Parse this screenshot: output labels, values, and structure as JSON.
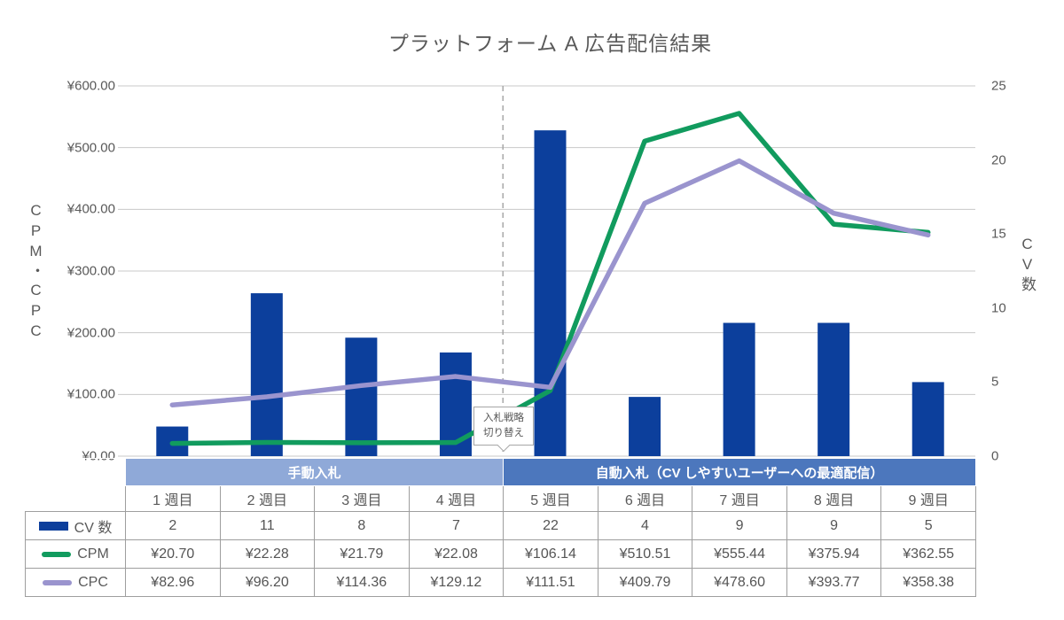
{
  "title": "プラットフォーム A 広告配信結果",
  "colors": {
    "bar": "#0C3F9C",
    "cpm_line": "#119B5E",
    "cpc_line": "#9A94CE",
    "band_manual_bg": "#8FA9D8",
    "band_auto_bg": "#4C77BD",
    "grid": "#c8c8c8",
    "dashed_line": "#a8a8a8",
    "axis_text": "#595959"
  },
  "left_axis": {
    "title": "CPM・CPC",
    "ticks": [
      "¥600.00",
      "¥500.00",
      "¥400.00",
      "¥300.00",
      "¥200.00",
      "¥100.00",
      "¥0.00"
    ]
  },
  "right_axis": {
    "title": "CV数",
    "ticks": [
      "25",
      "20",
      "15",
      "10",
      "5",
      "0"
    ]
  },
  "annotation": {
    "line1": "入札戦略",
    "line2": "切り替え"
  },
  "chart_data": {
    "type": "combo",
    "title": "プラットフォーム A 広告配信結果",
    "categories": [
      "1 週目",
      "2 週目",
      "3 週目",
      "4 週目",
      "5 週目",
      "6 週目",
      "7 週目",
      "8 週目",
      "9 週目"
    ],
    "series": [
      {
        "name": "CV 数",
        "type": "bar",
        "axis": "right",
        "values": [
          2,
          11,
          8,
          7,
          22,
          4,
          9,
          9,
          5
        ]
      },
      {
        "name": "CPM",
        "type": "line",
        "axis": "left",
        "values": [
          20.7,
          22.28,
          21.79,
          22.08,
          106.14,
          510.51,
          555.44,
          375.94,
          362.55
        ]
      },
      {
        "name": "CPC",
        "type": "line",
        "axis": "left",
        "values": [
          82.96,
          96.2,
          114.36,
          129.12,
          111.51,
          409.79,
          478.6,
          393.77,
          358.38
        ]
      }
    ],
    "left_ylim": [
      0,
      600
    ],
    "right_ylim": [
      0,
      25
    ],
    "grid": "horizontal",
    "strategy_switch_after_category_index": 3
  },
  "table": {
    "bands": [
      {
        "label": "手動入札",
        "span": 4
      },
      {
        "label": "自動入札（CV しやすいユーザーへの最適配信）",
        "span": 5
      }
    ],
    "weeks": [
      "1 週目",
      "2 週目",
      "3 週目",
      "4 週目",
      "5 週目",
      "6 週目",
      "7 週目",
      "8 週目",
      "9 週目"
    ],
    "rows": [
      {
        "label": "CV 数",
        "swatch": "bar",
        "values": [
          "2",
          "11",
          "8",
          "7",
          "22",
          "4",
          "9",
          "9",
          "5"
        ]
      },
      {
        "label": "CPM",
        "swatch": "line-cpm",
        "values": [
          "¥20.70",
          "¥22.28",
          "¥21.79",
          "¥22.08",
          "¥106.14",
          "¥510.51",
          "¥555.44",
          "¥375.94",
          "¥362.55"
        ]
      },
      {
        "label": "CPC",
        "swatch": "line-cpc",
        "values": [
          "¥82.96",
          "¥96.20",
          "¥114.36",
          "¥129.12",
          "¥111.51",
          "¥409.79",
          "¥478.60",
          "¥393.77",
          "¥358.38"
        ]
      }
    ]
  }
}
